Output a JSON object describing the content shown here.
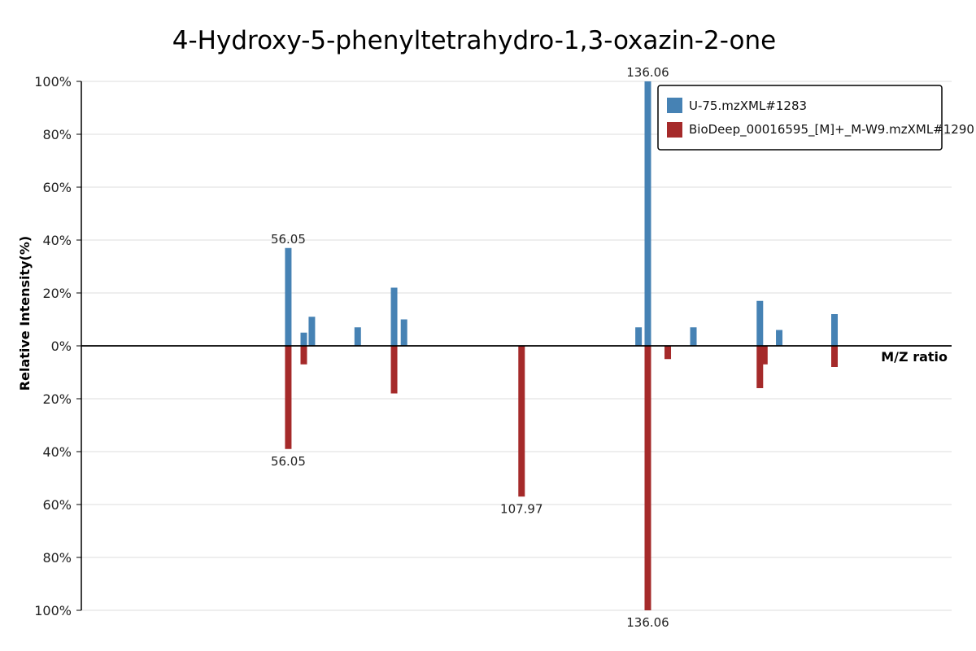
{
  "chart_data": {
    "type": "bar",
    "title": "4-Hydroxy-5-phenyltetrahydro-1,3-oxazin-2-one",
    "xlabel": "M/Z ratio",
    "ylabel": "Relative Intensity(%)",
    "y_ticks_top": [
      "100%",
      "80%",
      "60%",
      "40%",
      "20%",
      "0%"
    ],
    "y_ticks_bottom": [
      "20%",
      "40%",
      "60%",
      "80%",
      "100%"
    ],
    "ylim": [
      -100,
      100
    ],
    "xlim": [
      10,
      175
    ],
    "grid": true,
    "legend_position": "top-right",
    "series": [
      {
        "name": "U-75.mzXML#1283",
        "color": "#4682b4",
        "direction": "up",
        "peaks": [
          {
            "mz": 56.05,
            "intensity": 37,
            "label": "56.05"
          },
          {
            "mz": 59.5,
            "intensity": 5
          },
          {
            "mz": 61.3,
            "intensity": 11
          },
          {
            "mz": 71.5,
            "intensity": 7
          },
          {
            "mz": 79.6,
            "intensity": 22
          },
          {
            "mz": 81.8,
            "intensity": 10
          },
          {
            "mz": 134.0,
            "intensity": 7
          },
          {
            "mz": 136.06,
            "intensity": 100,
            "label": "136.06"
          },
          {
            "mz": 146.2,
            "intensity": 7
          },
          {
            "mz": 161.0,
            "intensity": 17
          },
          {
            "mz": 165.3,
            "intensity": 6
          },
          {
            "mz": 177.6,
            "intensity": 12
          }
        ]
      },
      {
        "name": "BioDeep_00016595_[M]+_M-W9.mzXML#1290",
        "color": "#a52a2a",
        "direction": "down",
        "peaks": [
          {
            "mz": 56.05,
            "intensity": 39,
            "label": "56.05"
          },
          {
            "mz": 59.5,
            "intensity": 7
          },
          {
            "mz": 79.6,
            "intensity": 18
          },
          {
            "mz": 107.97,
            "intensity": 57,
            "label": "107.97"
          },
          {
            "mz": 136.06,
            "intensity": 100,
            "label": "136.06"
          },
          {
            "mz": 140.5,
            "intensity": 5
          },
          {
            "mz": 161.0,
            "intensity": 16
          },
          {
            "mz": 162.0,
            "intensity": 7
          },
          {
            "mz": 177.6,
            "intensity": 8
          }
        ]
      }
    ]
  }
}
